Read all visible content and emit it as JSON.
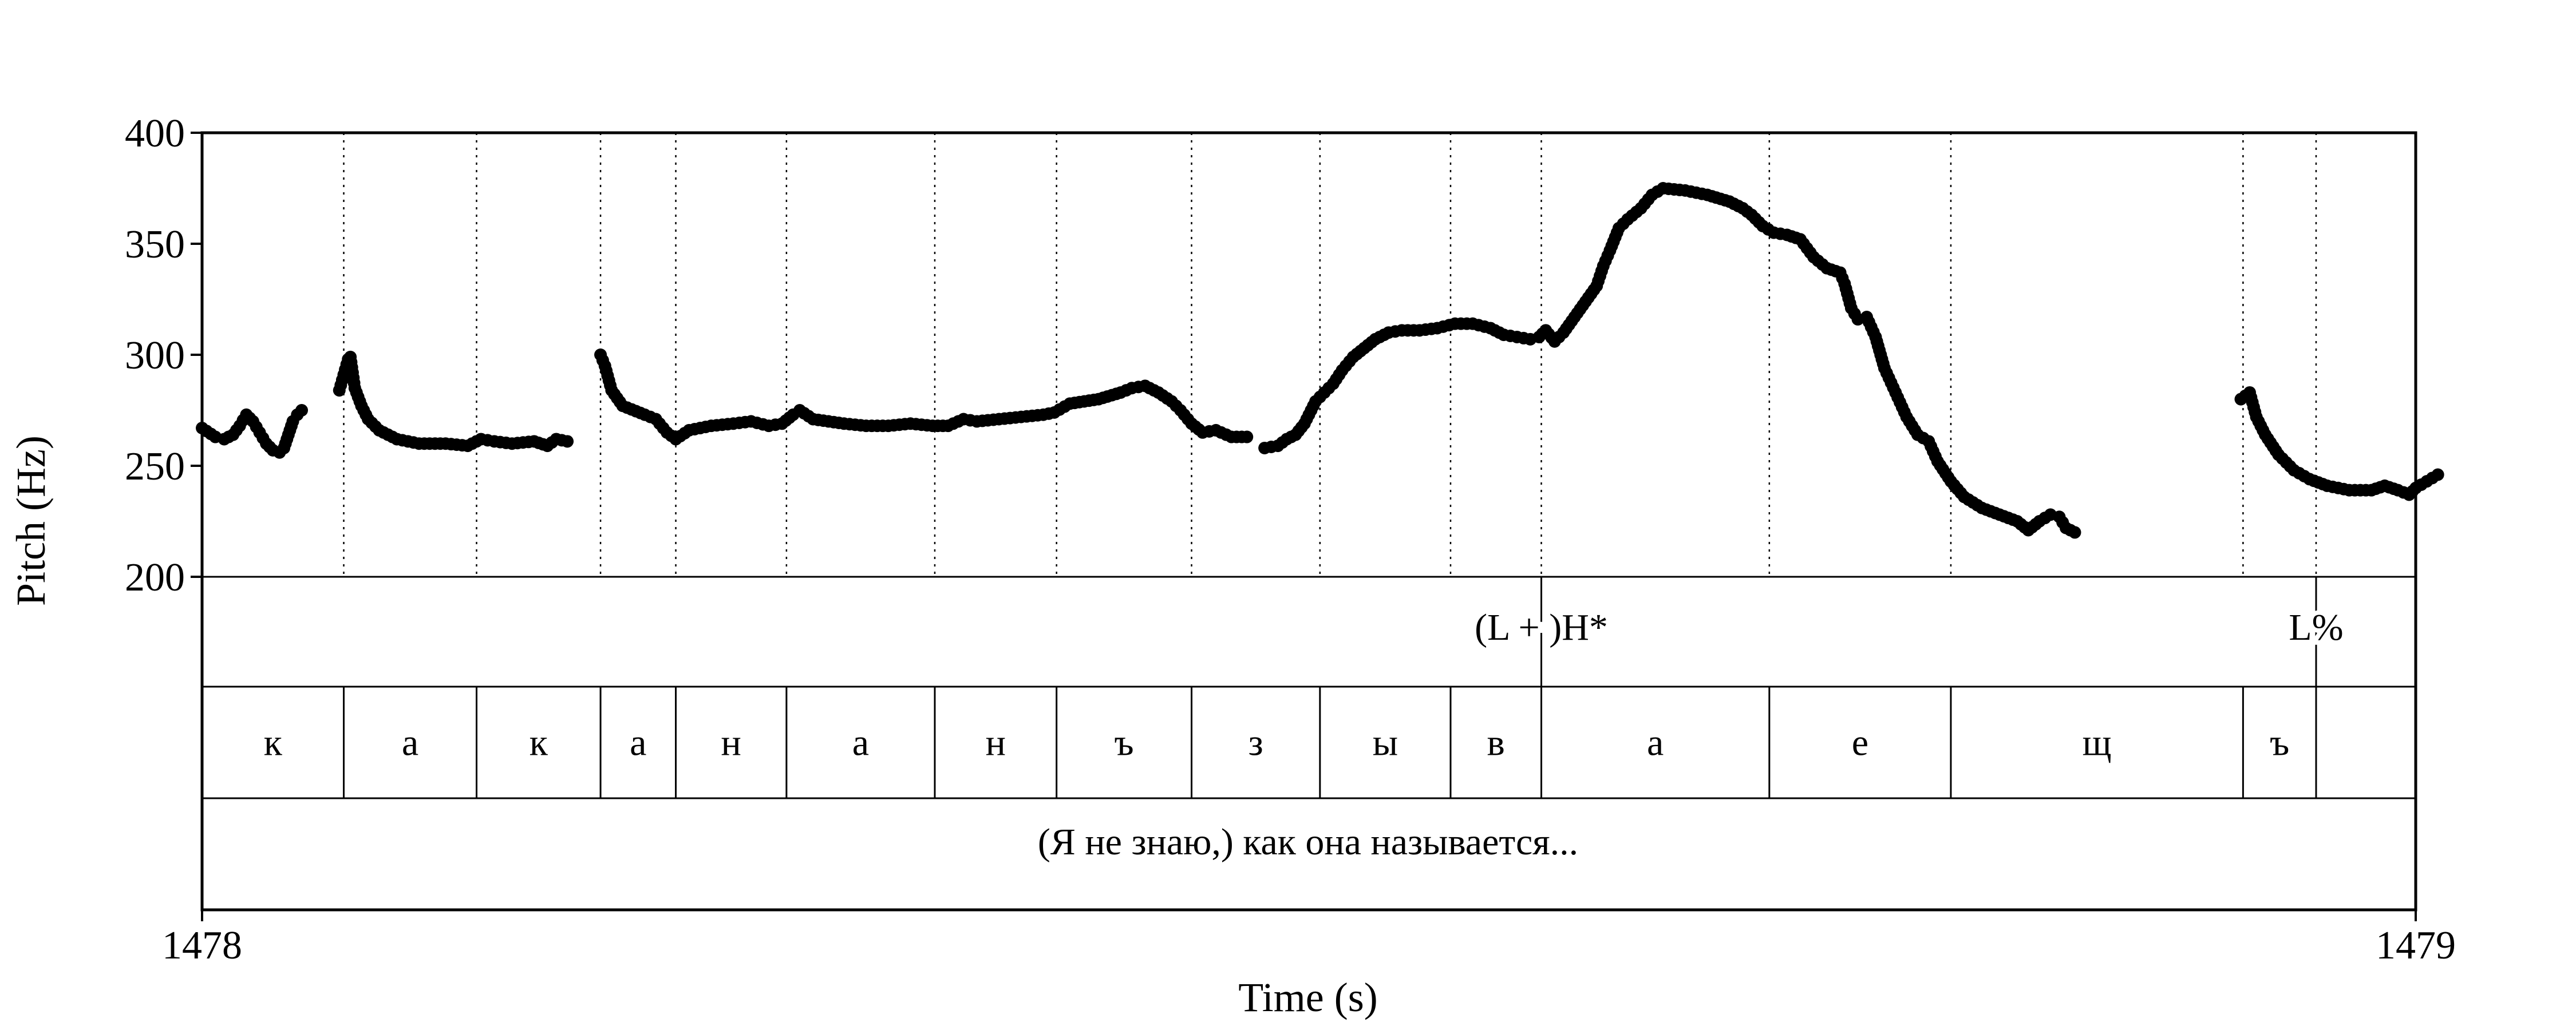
{
  "chart_data": {
    "type": "scatter",
    "title": "",
    "xlabel": "Time (s)",
    "ylabel": "Pitch (Hz)",
    "xlim": [
      1478,
      1479
    ],
    "ylim": [
      200,
      400
    ],
    "x_ticks": [
      "1478",
      "1479"
    ],
    "y_ticks": [
      "200",
      "250",
      "300",
      "350",
      "400"
    ],
    "boundaries": [
      1478,
      1478.064,
      1478.124,
      1478.18,
      1478.214,
      1478.264,
      1478.331,
      1478.386,
      1478.447,
      1478.505,
      1478.564,
      1478.605,
      1478.708,
      1478.79,
      1478.922,
      1478.955,
      1479
    ],
    "segments": [
      "к",
      "а",
      "к",
      "а",
      "н",
      "а",
      "н",
      "ъ",
      "з",
      "ы",
      "в",
      "а",
      "е",
      "щ",
      "ъ"
    ],
    "tones": [
      {
        "label": "(L + )H*",
        "time": 1478.605
      },
      {
        "label": "L%",
        "time": 1478.955
      }
    ],
    "sentence": "(Я не знаю,) как она называется...",
    "pitch_contour": [
      [
        [
          1478.0,
          267
        ],
        [
          1478.006,
          263
        ],
        [
          1478.01,
          262
        ],
        [
          1478.014,
          264
        ],
        [
          1478.017,
          268
        ],
        [
          1478.02,
          273
        ],
        [
          1478.023,
          270
        ],
        [
          1478.026,
          265
        ],
        [
          1478.029,
          260
        ],
        [
          1478.032,
          257
        ],
        [
          1478.035,
          256
        ],
        [
          1478.037,
          258
        ],
        [
          1478.039,
          264
        ],
        [
          1478.041,
          270
        ],
        [
          1478.043,
          273
        ],
        [
          1478.045,
          275
        ]
      ],
      [
        [
          1478.062,
          284
        ],
        [
          1478.064,
          291
        ],
        [
          1478.066,
          298
        ],
        [
          1478.067,
          299
        ],
        [
          1478.069,
          285
        ],
        [
          1478.072,
          277
        ],
        [
          1478.075,
          271
        ],
        [
          1478.08,
          266
        ],
        [
          1478.088,
          262
        ],
        [
          1478.098,
          260
        ],
        [
          1478.11,
          260
        ],
        [
          1478.12,
          259
        ],
        [
          1478.126,
          262
        ],
        [
          1478.132,
          261
        ],
        [
          1478.14,
          260
        ],
        [
          1478.15,
          261
        ],
        [
          1478.156,
          259
        ],
        [
          1478.16,
          262
        ],
        [
          1478.165,
          261
        ]
      ],
      [
        [
          1478.18,
          300
        ],
        [
          1478.182,
          295
        ],
        [
          1478.185,
          284
        ],
        [
          1478.19,
          277
        ],
        [
          1478.2,
          273
        ],
        [
          1478.205,
          271
        ],
        [
          1478.21,
          265
        ],
        [
          1478.214,
          262
        ],
        [
          1478.22,
          266
        ],
        [
          1478.23,
          268
        ],
        [
          1478.24,
          269
        ],
        [
          1478.248,
          270
        ],
        [
          1478.256,
          268
        ],
        [
          1478.262,
          269
        ],
        [
          1478.267,
          273
        ],
        [
          1478.27,
          275
        ],
        [
          1478.276,
          271
        ],
        [
          1478.29,
          269
        ],
        [
          1478.3,
          268
        ],
        [
          1478.31,
          268
        ],
        [
          1478.32,
          269
        ],
        [
          1478.33,
          268
        ],
        [
          1478.337,
          268
        ],
        [
          1478.344,
          271
        ],
        [
          1478.35,
          270
        ],
        [
          1478.36,
          271
        ],
        [
          1478.37,
          272
        ],
        [
          1478.38,
          273
        ],
        [
          1478.385,
          274
        ],
        [
          1478.392,
          278
        ],
        [
          1478.405,
          280
        ],
        [
          1478.415,
          283
        ],
        [
          1478.42,
          285
        ],
        [
          1478.426,
          286
        ],
        [
          1478.432,
          283
        ],
        [
          1478.438,
          279
        ],
        [
          1478.442,
          275
        ],
        [
          1478.447,
          269
        ],
        [
          1478.452,
          265
        ],
        [
          1478.458,
          266
        ],
        [
          1478.465,
          263
        ],
        [
          1478.472,
          263
        ]
      ],
      [
        [
          1478.48,
          258
        ],
        [
          1478.486,
          259
        ],
        [
          1478.49,
          262
        ],
        [
          1478.494,
          264
        ],
        [
          1478.498,
          269
        ],
        [
          1478.5,
          273
        ],
        [
          1478.503,
          279
        ],
        [
          1478.507,
          283
        ],
        [
          1478.511,
          287
        ],
        [
          1478.515,
          293
        ],
        [
          1478.52,
          299
        ],
        [
          1478.525,
          303
        ],
        [
          1478.53,
          307
        ],
        [
          1478.536,
          310
        ],
        [
          1478.542,
          311
        ],
        [
          1478.55,
          311
        ],
        [
          1478.558,
          312
        ],
        [
          1478.566,
          314
        ],
        [
          1478.574,
          314
        ],
        [
          1478.582,
          312
        ],
        [
          1478.588,
          309
        ],
        [
          1478.594,
          308
        ],
        [
          1478.6,
          307
        ],
        [
          1478.604,
          308
        ],
        [
          1478.607,
          311
        ],
        [
          1478.611,
          306
        ],
        [
          1478.615,
          310
        ],
        [
          1478.62,
          317
        ],
        [
          1478.625,
          324
        ],
        [
          1478.63,
          331
        ],
        [
          1478.633,
          340
        ],
        [
          1478.636,
          347
        ],
        [
          1478.64,
          357
        ],
        [
          1478.644,
          361
        ],
        [
          1478.65,
          366
        ],
        [
          1478.655,
          372
        ],
        [
          1478.66,
          375
        ],
        [
          1478.67,
          374
        ],
        [
          1478.68,
          372
        ],
        [
          1478.69,
          369
        ],
        [
          1478.696,
          366
        ],
        [
          1478.7,
          363
        ],
        [
          1478.705,
          358
        ],
        [
          1478.71,
          355
        ],
        [
          1478.716,
          354
        ],
        [
          1478.722,
          352
        ],
        [
          1478.728,
          344
        ],
        [
          1478.734,
          339
        ],
        [
          1478.74,
          337
        ],
        [
          1478.742,
          332
        ],
        [
          1478.745,
          321
        ],
        [
          1478.748,
          316
        ],
        [
          1478.752,
          317
        ],
        [
          1478.756,
          308
        ],
        [
          1478.76,
          294
        ],
        [
          1478.765,
          283
        ],
        [
          1478.77,
          272
        ],
        [
          1478.775,
          264
        ],
        [
          1478.78,
          261
        ],
        [
          1478.784,
          252
        ],
        [
          1478.79,
          243
        ],
        [
          1478.796,
          236
        ],
        [
          1478.804,
          231
        ],
        [
          1478.812,
          228
        ],
        [
          1478.82,
          225
        ],
        [
          1478.825,
          221
        ],
        [
          1478.83,
          225
        ],
        [
          1478.835,
          228
        ],
        [
          1478.839,
          227
        ],
        [
          1478.842,
          222
        ],
        [
          1478.846,
          220
        ]
      ],
      [
        [
          1478.921,
          280
        ],
        [
          1478.925,
          283
        ],
        [
          1478.928,
          272
        ],
        [
          1478.932,
          264
        ],
        [
          1478.938,
          255
        ],
        [
          1478.945,
          248
        ],
        [
          1478.952,
          244
        ],
        [
          1478.96,
          241
        ],
        [
          1478.97,
          239
        ],
        [
          1478.98,
          239
        ],
        [
          1478.986,
          241
        ],
        [
          1478.992,
          239
        ],
        [
          1478.997,
          237
        ],
        [
          1479.0,
          240
        ],
        [
          1479.005,
          243
        ],
        [
          1479.01,
          246
        ]
      ]
    ]
  }
}
